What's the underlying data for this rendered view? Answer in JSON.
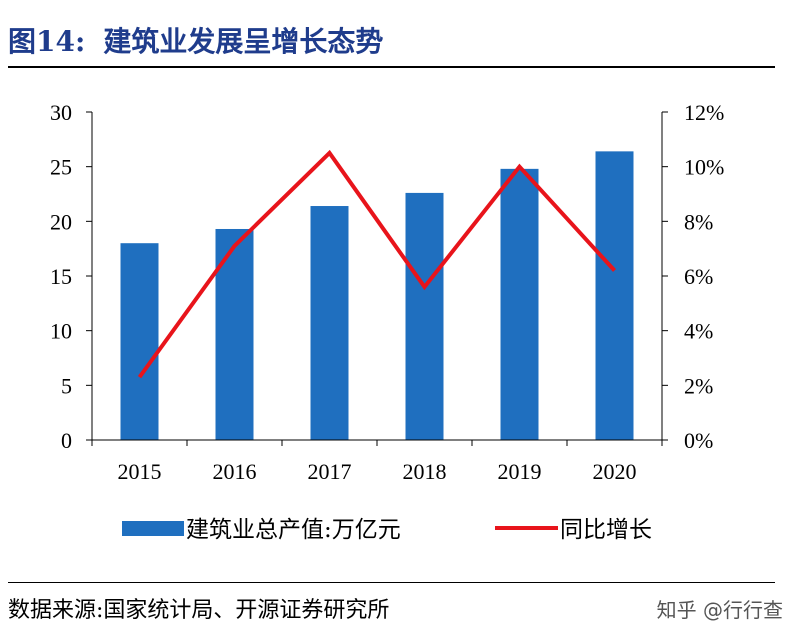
{
  "header": {
    "figure_label": "图14:",
    "title": "建筑业发展呈增长态势"
  },
  "footer": {
    "source": "数据来源:国家统计局、开源证券研究所",
    "watermark": "知乎 @行行查"
  },
  "colors": {
    "bar": "#1f6fbf",
    "line": "#e8141b",
    "title": "#1f3c8c"
  },
  "chart_data": {
    "type": "bar",
    "categories": [
      "2015",
      "2016",
      "2017",
      "2018",
      "2019",
      "2020"
    ],
    "series": [
      {
        "name": "建筑业总产值:万亿元",
        "type": "bar",
        "axis": "left",
        "values": [
          18.0,
          19.3,
          21.4,
          22.6,
          24.8,
          26.4
        ]
      },
      {
        "name": "同比增长",
        "type": "line",
        "axis": "right",
        "values": [
          2.3,
          7.1,
          10.5,
          5.6,
          10.0,
          6.2
        ]
      }
    ],
    "ylim_left": [
      0,
      30
    ],
    "yticks_left": [
      "0",
      "5",
      "10",
      "15",
      "20",
      "25",
      "30"
    ],
    "ylim_right": [
      0,
      12
    ],
    "yticks_right": [
      "0%",
      "2%",
      "4%",
      "6%",
      "8%",
      "10%",
      "12%"
    ],
    "xlabel": "",
    "ylabel": "",
    "grid": false,
    "legend": "bottom"
  }
}
